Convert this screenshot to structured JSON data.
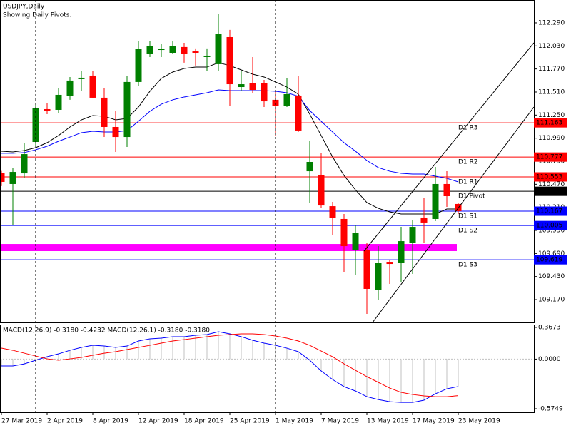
{
  "chart_data": [
    {
      "type": "candlestick",
      "title": "USDJPY,Daily",
      "subtitle": "Showing Daily Pivots.",
      "categories": [
        "27 Mar 2019",
        null,
        null,
        null,
        "2 Apr 2019",
        null,
        null,
        null,
        "8 Apr 2019",
        null,
        null,
        null,
        "12 Apr 2019",
        null,
        null,
        null,
        "18 Apr 2019",
        null,
        null,
        null,
        "25 Apr 2019",
        null,
        null,
        null,
        "1 May 2019",
        null,
        null,
        null,
        "7 May 2019",
        null,
        null,
        null,
        "13 May 2019",
        null,
        null,
        null,
        "17 May 2019",
        null,
        null,
        null,
        "23 May 2019"
      ],
      "open": [
        110.601,
        110.473,
        110.593,
        110.947,
        111.317,
        111.309,
        111.462,
        111.655,
        111.695,
        111.446,
        111.116,
        111.003,
        111.623,
        111.936,
        111.984,
        111.952,
        112.017,
        111.968,
        111.904,
        111.824,
        112.129,
        111.566,
        111.614,
        111.614,
        111.422,
        111.357,
        111.47,
        110.617,
        110.577,
        110.223,
        110.079,
        109.733,
        109.733,
        109.275,
        109.596,
        109.588,
        109.813,
        110.095,
        110.079,
        110.473,
        110.248
      ],
      "high": [
        110.62,
        110.658,
        110.939,
        111.381,
        111.381,
        111.55,
        111.679,
        111.743,
        111.743,
        111.55,
        111.301,
        111.687,
        112.081,
        112.081,
        112.049,
        112.081,
        112.065,
        112.001,
        112.001,
        112.386,
        112.21,
        111.743,
        111.904,
        111.647,
        111.518,
        111.663,
        111.695,
        110.955,
        110.826,
        110.272,
        110.135,
        110.014,
        109.813,
        109.773,
        109.612,
        109.99,
        110.071,
        110.312,
        110.666,
        110.617,
        110.264
      ],
      "low": [
        110.45,
        110.006,
        110.537,
        110.899,
        111.261,
        111.277,
        111.422,
        111.518,
        111.438,
        111.003,
        110.835,
        110.891,
        111.582,
        111.904,
        111.904,
        111.936,
        111.84,
        111.808,
        111.743,
        111.743,
        111.357,
        111.518,
        111.502,
        111.341,
        111.019,
        111.341,
        111.06,
        110.256,
        110.199,
        109.894,
        109.476,
        109.452,
        109.009,
        109.17,
        109.347,
        109.371,
        109.46,
        109.813,
        110.055,
        110.215,
        110.135
      ],
      "close": [
        110.497,
        110.609,
        110.81,
        111.333,
        111.301,
        111.478,
        111.639,
        111.671,
        111.446,
        111.116,
        111.003,
        111.623,
        111.999,
        112.025,
        111.999,
        112.025,
        111.944,
        111.952,
        111.92,
        112.161,
        111.598,
        111.598,
        111.534,
        111.405,
        111.357,
        111.486,
        111.076,
        110.722,
        110.231,
        110.087,
        109.773,
        109.918,
        109.291,
        109.588,
        109.572,
        109.829,
        109.99,
        110.039,
        110.473,
        110.336,
        110.167
      ],
      "up_color": "#008000",
      "down_color": "#ff0000",
      "lines": [
        {
          "color": "#000000",
          "values": [
            110.843,
            110.835,
            110.851,
            110.883,
            110.939,
            111.02,
            111.116,
            111.196,
            111.245,
            111.237,
            111.196,
            111.212,
            111.341,
            111.518,
            111.663,
            111.735,
            111.775,
            111.791,
            111.791,
            111.84,
            111.808,
            111.759,
            111.711,
            111.679,
            111.623,
            111.566,
            111.486,
            111.261,
            111.02,
            110.778,
            110.569,
            110.408,
            110.264,
            110.199,
            110.159,
            110.135,
            110.135,
            110.135,
            110.135,
            110.191,
            110.191
          ]
        },
        {
          "color": "#0000ff",
          "values": [
            110.819,
            110.819,
            110.827,
            110.859,
            110.899,
            110.955,
            111.003,
            111.052,
            111.068,
            111.06,
            111.06,
            111.076,
            111.18,
            111.293,
            111.373,
            111.422,
            111.454,
            111.478,
            111.502,
            111.534,
            111.526,
            111.526,
            111.526,
            111.526,
            111.518,
            111.502,
            111.462,
            111.301,
            111.18,
            111.06,
            110.939,
            110.843,
            110.738,
            110.658,
            110.617,
            110.593,
            110.585,
            110.585,
            110.561,
            110.537,
            110.497
          ]
        }
      ],
      "pivots": [
        {
          "label": "D1 R3",
          "value": 111.163,
          "color": "#ff0000"
        },
        {
          "label": "D1 R2",
          "value": 110.777,
          "color": "#ff0000"
        },
        {
          "label": "D1 R1",
          "value": 110.553,
          "color": "#ff0000"
        },
        {
          "label": "D1 Pivot",
          "value": 110.391,
          "color": "#000000"
        },
        {
          "label": "D1 S1",
          "value": 110.167,
          "color": "#0000ff"
        },
        {
          "label": "D1 S2",
          "value": 110.005,
          "color": "#0000ff"
        },
        {
          "label": "D1 S3",
          "value": 109.619,
          "color": "#0000ff"
        }
      ],
      "band": {
        "ylim": [
          109.717,
          109.797
        ],
        "color": "#ff00ff"
      },
      "ylim": [
        108.913,
        112.547
      ],
      "yticks": [
        {
          "value": 109.17,
          "label": "109.170"
        },
        {
          "value": 109.43,
          "label": "109.430"
        },
        {
          "value": 109.69,
          "label": "109.690"
        },
        {
          "value": 109.95,
          "label": "109.950"
        },
        {
          "value": 110.21,
          "label": "110.210"
        },
        {
          "value": 110.47,
          "label": "110.470"
        },
        {
          "value": 110.73,
          "label": "110.730"
        },
        {
          "value": 110.99,
          "label": "110.990"
        },
        {
          "value": 111.25,
          "label": "111.250"
        },
        {
          "value": 111.51,
          "label": "111.510"
        },
        {
          "value": 111.77,
          "label": "111.770"
        },
        {
          "value": 112.03,
          "label": "112.030"
        },
        {
          "value": 112.29,
          "label": "112.290"
        }
      ]
    },
    {
      "type": "macd",
      "title": "MACD(12,26,9) -0.3180 -0.4232 MACD(12,26,1) -0.3180 -0.3180",
      "histogram": {
        "color": "#c0c0c0",
        "values": [
          -0.079,
          -0.079,
          -0.055,
          -0.013,
          0.028,
          0.061,
          0.102,
          0.136,
          0.16,
          0.152,
          0.136,
          0.152,
          0.21,
          0.235,
          0.243,
          0.26,
          0.26,
          0.276,
          0.284,
          0.317,
          0.293,
          0.26,
          0.218,
          0.185,
          0.16,
          0.127,
          0.086,
          -0.013,
          -0.137,
          -0.236,
          -0.319,
          -0.369,
          -0.435,
          -0.468,
          -0.493,
          -0.501,
          -0.501,
          -0.476,
          -0.402,
          -0.344,
          -0.318
        ]
      },
      "series": [
        {
          "color": "#0000ff",
          "values": [
            -0.079,
            -0.079,
            -0.055,
            -0.013,
            0.028,
            0.061,
            0.102,
            0.136,
            0.16,
            0.152,
            0.136,
            0.152,
            0.21,
            0.235,
            0.243,
            0.26,
            0.26,
            0.276,
            0.284,
            0.317,
            0.293,
            0.26,
            0.218,
            0.185,
            0.16,
            0.127,
            0.086,
            -0.013,
            -0.137,
            -0.236,
            -0.319,
            -0.369,
            -0.435,
            -0.468,
            -0.493,
            -0.501,
            -0.501,
            -0.476,
            -0.402,
            -0.344,
            -0.318
          ]
        },
        {
          "color": "#ff0000",
          "values": [
            0.127,
            0.102,
            0.069,
            0.036,
            0.003,
            -0.013,
            0.003,
            0.02,
            0.045,
            0.069,
            0.086,
            0.111,
            0.136,
            0.16,
            0.185,
            0.21,
            0.226,
            0.243,
            0.26,
            0.276,
            0.284,
            0.293,
            0.293,
            0.284,
            0.268,
            0.243,
            0.21,
            0.16,
            0.094,
            0.028,
            -0.055,
            -0.129,
            -0.203,
            -0.269,
            -0.336,
            -0.385,
            -0.41,
            -0.426,
            -0.435,
            -0.435,
            -0.4232
          ]
        }
      ],
      "ylim": [
        -0.616,
        0.4
      ],
      "yticks": [
        -0.5749,
        {
          "value": 0,
          "label": "0.0000"
        },
        0.3673
      ]
    }
  ]
}
